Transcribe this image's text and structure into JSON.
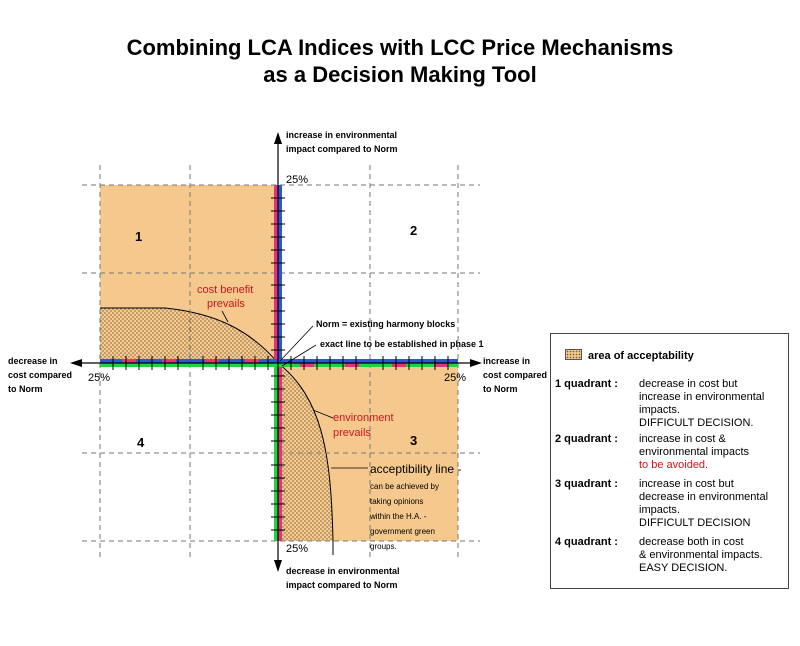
{
  "title": {
    "line1": "Combining LCA Indices with LCC Price Mechanisms",
    "line2": "as a Decision Making Tool"
  },
  "axes": {
    "up": [
      "increase in environmental",
      "impact compared to Norm"
    ],
    "down": [
      "decrease in environmental",
      "impact compared to Norm"
    ],
    "left": [
      "decrease in",
      "cost compared",
      "to Norm"
    ],
    "right": [
      "increase in",
      "cost compared",
      "to Norm"
    ],
    "pct_top": "25%",
    "pct_bottom": "25%",
    "pct_left": "25%",
    "pct_right": "25%"
  },
  "quadrants": {
    "q1": "1",
    "q2": "2",
    "q3": "3",
    "q4": "4"
  },
  "annotations": {
    "cost_benefit": [
      "cost benefit",
      "prevails"
    ],
    "environment": [
      "environment",
      "prevails"
    ],
    "norm": "Norm = existing harmony blocks",
    "exact_line": "exact line to be established in phase 1",
    "acceptability_title": "acceptibility line -",
    "acceptability_desc": [
      "can be achieved by",
      "taking opinions",
      "within the H.A. -",
      "government green",
      "groups."
    ]
  },
  "legend": {
    "header": "area of acceptability",
    "items": [
      {
        "key": "1 quadrant :",
        "lines": [
          "decrease in cost but",
          "increase in environmental",
          "impacts.",
          "DIFFICULT DECISION."
        ]
      },
      {
        "key": "2 quadrant :",
        "lines": [
          "increase in cost &",
          "environmental impacts"
        ],
        "red": "to be avoided."
      },
      {
        "key": "3 quadrant :",
        "lines": [
          "increase in cost but",
          "decrease in environmental",
          "impacts.",
          "DIFFICULT DECISION"
        ]
      },
      {
        "key": "4 quadrant :",
        "lines": [
          "decrease both in cost",
          "& environmental impacts.",
          "EASY DECISION."
        ]
      }
    ]
  },
  "colors": {
    "shaded": "#f5c98d",
    "axis_blue": "#2b56d6",
    "axis_green": "#22d43c",
    "axis_pink": "#e0357a",
    "red_text": "#d0141c"
  }
}
